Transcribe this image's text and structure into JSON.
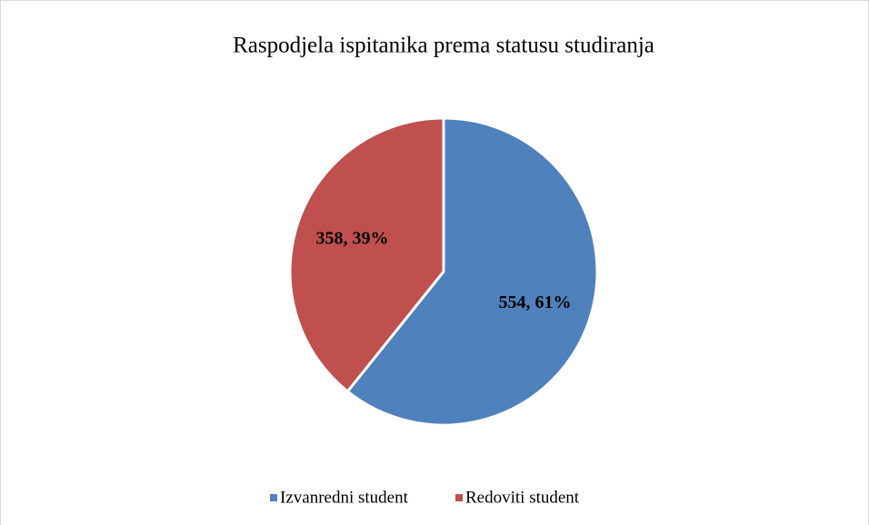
{
  "chart_data": {
    "type": "pie",
    "title": "Raspodjela ispitanika prema statusu studiranja",
    "categories": [
      "Izvanredni student",
      "Redoviti student"
    ],
    "values": [
      554,
      358
    ],
    "value_labels": [
      "554, 61%",
      "358, 39%"
    ],
    "colors": [
      "#4f81bd",
      "#c0504d"
    ],
    "legend": "bottom"
  }
}
